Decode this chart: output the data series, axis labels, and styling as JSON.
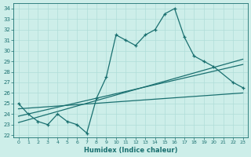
{
  "xlabel": "Humidex (Indice chaleur)",
  "background_color": "#cdeee9",
  "grid_color": "#b0ddd8",
  "line_color": "#1a7070",
  "xlim": [
    -0.5,
    23.5
  ],
  "ylim": [
    21.8,
    34.5
  ],
  "yticks": [
    22,
    23,
    24,
    25,
    26,
    27,
    28,
    29,
    30,
    31,
    32,
    33,
    34
  ],
  "xticks": [
    0,
    1,
    2,
    3,
    4,
    5,
    6,
    7,
    8,
    9,
    10,
    11,
    12,
    13,
    14,
    15,
    16,
    17,
    18,
    19,
    20,
    21,
    22,
    23
  ],
  "main_x": [
    0,
    1,
    2,
    3,
    4,
    5,
    6,
    7,
    8,
    9,
    10,
    11,
    12,
    13,
    14,
    15,
    16,
    17,
    18,
    19,
    20,
    22,
    23
  ],
  "main_y": [
    25.0,
    24.0,
    23.3,
    23.0,
    24.0,
    23.3,
    23.0,
    22.2,
    25.5,
    27.5,
    31.5,
    31.0,
    30.5,
    31.5,
    32.0,
    33.5,
    34.0,
    31.3,
    29.5,
    29.0,
    28.5,
    27.0,
    26.5
  ],
  "line1_x": [
    0,
    23
  ],
  "line1_y": [
    24.5,
    26.0
  ],
  "line2_x": [
    0,
    23
  ],
  "line2_y": [
    23.2,
    29.2
  ],
  "line3_x": [
    0,
    23
  ],
  "line3_y": [
    23.8,
    28.7
  ]
}
